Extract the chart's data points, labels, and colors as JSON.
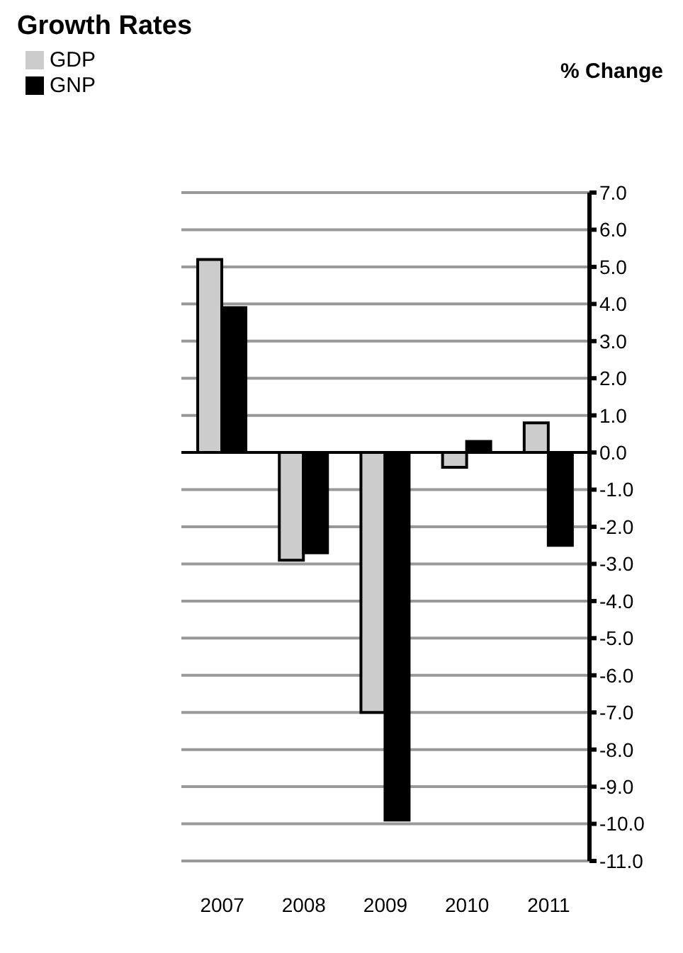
{
  "chart_data": {
    "type": "bar",
    "title": "Growth Rates",
    "ylabel": "% Change",
    "categories": [
      "2007",
      "2008",
      "2009",
      "2010",
      "2011"
    ],
    "series": [
      {
        "name": "GDP",
        "color": "#cccccc",
        "values": [
          5.2,
          -2.9,
          -7.0,
          -0.4,
          0.8
        ]
      },
      {
        "name": "GNP",
        "color": "#000000",
        "values": [
          3.9,
          -2.7,
          -9.9,
          0.3,
          -2.5
        ]
      }
    ],
    "ylim": [
      -11,
      7
    ],
    "yticks": [
      {
        "value": 7,
        "label": "7.0"
      },
      {
        "value": 6,
        "label": "6.0"
      },
      {
        "value": 5,
        "label": "5.0"
      },
      {
        "value": 4,
        "label": "4.0"
      },
      {
        "value": 3,
        "label": "3.0"
      },
      {
        "value": 2,
        "label": "2.0"
      },
      {
        "value": 1,
        "label": "1.0"
      },
      {
        "value": 0,
        "label": "0.0"
      },
      {
        "value": -1,
        "label": "-1.0"
      },
      {
        "value": -2,
        "label": "-2.0"
      },
      {
        "value": -3,
        "label": "-3.0"
      },
      {
        "value": -4,
        "label": "-4.0"
      },
      {
        "value": -5,
        "label": "-5.0"
      },
      {
        "value": -6,
        "label": "-6.0"
      },
      {
        "value": -7,
        "label": "-7.0"
      },
      {
        "value": -8,
        "label": "-8.0"
      },
      {
        "value": -9,
        "label": "-9.0"
      },
      {
        "value": -10,
        "label": "-10.0"
      },
      {
        "value": -11,
        "label": "-11.0"
      }
    ],
    "grid": "y",
    "legend": "top left"
  }
}
